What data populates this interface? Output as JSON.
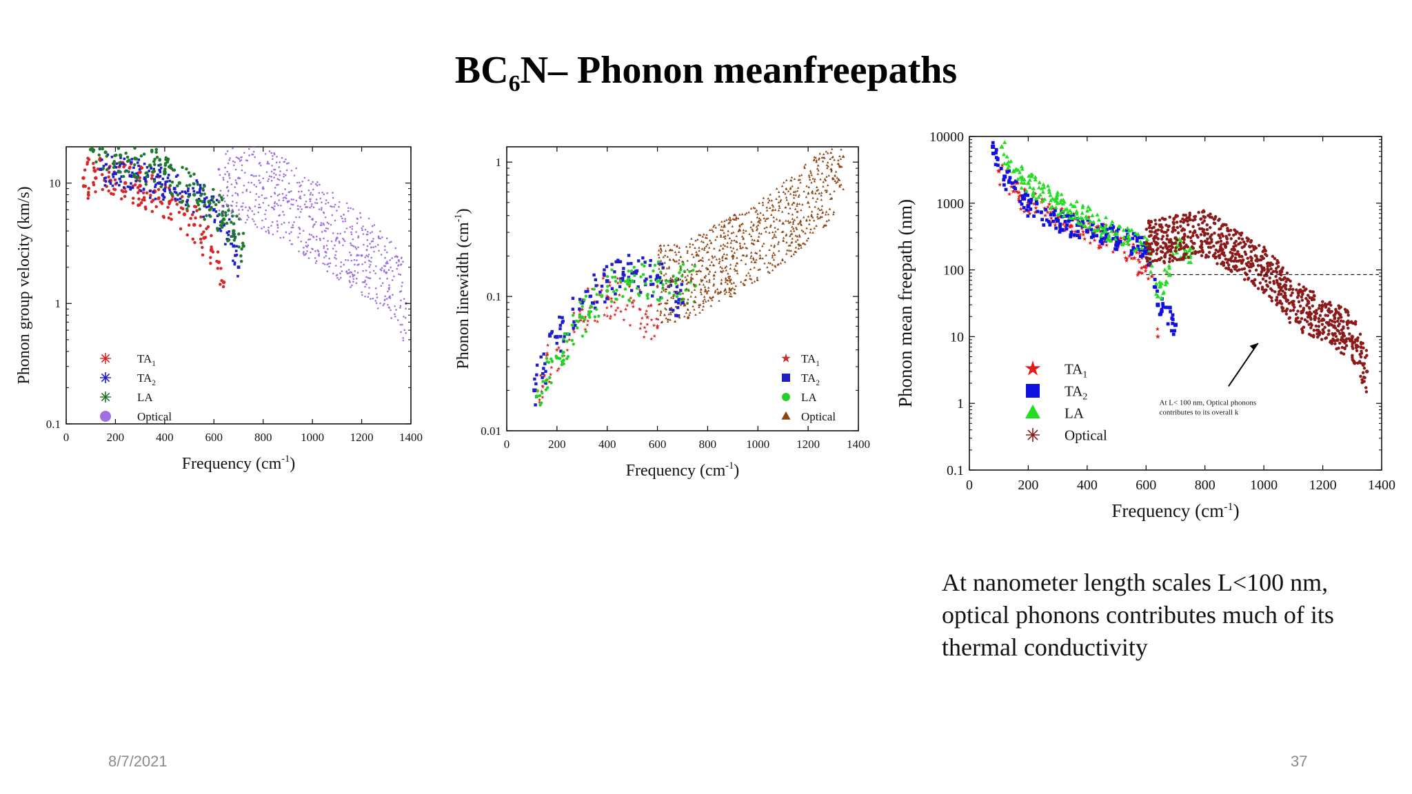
{
  "slide": {
    "title_main": "BC",
    "title_sub": "6",
    "title_rest": "N– Phonon meanfreepaths",
    "caption": "At nanometer length scales L<100 nm, optical phonons contributes much of its thermal conductivity",
    "date": "8/7/2021",
    "page_number": "37"
  },
  "chart_data": [
    {
      "type": "scatter",
      "xlabel": "Frequency (cm-1)",
      "ylabel": "Phonon group velocity (km/s)",
      "xlim": [
        0,
        1400
      ],
      "ylim": [
        0.1,
        20
      ],
      "yscale": "log",
      "xticks": [
        "0",
        "200",
        "400",
        "600",
        "800",
        "1000",
        "1200",
        "1400"
      ],
      "yticks": [
        "0.1",
        "1",
        "10"
      ],
      "legend": [
        {
          "label": "TA",
          "sub": "1",
          "color": "#d62728",
          "marker": "asterisk"
        },
        {
          "label": "TA",
          "sub": "2",
          "color": "#1f1fc8",
          "marker": "asterisk"
        },
        {
          "label": "LA",
          "sub": "",
          "color": "#1e7a2b",
          "marker": "asterisk"
        },
        {
          "label": "Optical",
          "sub": "",
          "color": "#a070e0",
          "marker": "dot"
        }
      ],
      "legend_position": "bottom-left",
      "series": [
        {
          "name": "TA1",
          "color": "#d62728",
          "x": [
            70,
            120,
            180,
            240,
            300,
            360,
            420,
            480,
            520,
            560,
            590,
            620,
            640
          ],
          "y": [
            11,
            11,
            10.5,
            10,
            9.5,
            8.5,
            7,
            5.5,
            4.5,
            3.5,
            2.8,
            2.2,
            1.5
          ]
        },
        {
          "name": "TA2",
          "color": "#1f1fc8",
          "x": [
            140,
            200,
            260,
            320,
            380,
            440,
            500,
            560,
            600,
            640,
            680,
            700
          ],
          "y": [
            13,
            12,
            11.5,
            11,
            10,
            9,
            8,
            7,
            6,
            4.5,
            3,
            2
          ]
        },
        {
          "name": "LA",
          "color": "#1e7a2b",
          "x": [
            100,
            160,
            220,
            280,
            340,
            400,
            460,
            520,
            580,
            640,
            680,
            720
          ],
          "y": [
            19,
            18,
            17,
            16,
            14,
            12,
            10,
            8,
            7,
            5,
            4,
            3
          ]
        },
        {
          "name": "Optical",
          "color": "#a070e0",
          "x": [
            620,
            700,
            800,
            900,
            1000,
            1100,
            1200,
            1300,
            1380
          ],
          "y": [
            13,
            11,
            9,
            7,
            5,
            3.5,
            2.5,
            1.8,
            1
          ]
        }
      ]
    },
    {
      "type": "scatter",
      "xlabel": "Frequency (cm-1)",
      "ylabel": "Phonon linewidth (cm-1)",
      "xlim": [
        0,
        1400
      ],
      "ylim": [
        0.01,
        1.3
      ],
      "yscale": "log",
      "xticks": [
        "0",
        "200",
        "400",
        "600",
        "800",
        "1000",
        "1200",
        "1400"
      ],
      "yticks": [
        "0.01",
        "0.1",
        "1"
      ],
      "legend": [
        {
          "label": "TA",
          "sub": "1",
          "color": "#d62728",
          "marker": "star"
        },
        {
          "label": "TA",
          "sub": "2",
          "color": "#1f1fc8",
          "marker": "square"
        },
        {
          "label": "LA",
          "sub": "",
          "color": "#27d027",
          "marker": "circle"
        },
        {
          "label": "Optical",
          "sub": "",
          "color": "#8b4513",
          "marker": "triangle"
        }
      ],
      "legend_position": "bottom-right",
      "series": [
        {
          "name": "TA1",
          "color": "#d62728",
          "x": [
            120,
            200,
            300,
            400,
            500,
            560,
            600
          ],
          "y": [
            0.02,
            0.04,
            0.08,
            0.1,
            0.09,
            0.07,
            0.06
          ]
        },
        {
          "name": "TA2",
          "color": "#1f1fc8",
          "x": [
            110,
            200,
            300,
            400,
            500,
            600,
            700
          ],
          "y": [
            0.02,
            0.05,
            0.09,
            0.13,
            0.15,
            0.14,
            0.09
          ]
        },
        {
          "name": "LA",
          "color": "#27d027",
          "x": [
            120,
            200,
            300,
            400,
            500,
            600,
            750
          ],
          "y": [
            0.018,
            0.035,
            0.07,
            0.11,
            0.13,
            0.13,
            0.12
          ]
        },
        {
          "name": "Optical",
          "color": "#8b4513",
          "x": [
            600,
            700,
            800,
            900,
            1000,
            1100,
            1200,
            1300,
            1340
          ],
          "y": [
            0.12,
            0.13,
            0.16,
            0.2,
            0.26,
            0.35,
            0.5,
            0.75,
            1.1
          ]
        }
      ]
    },
    {
      "type": "scatter",
      "xlabel": "Frequency (cm-1)",
      "ylabel": "Phonon mean freepath (nm)",
      "xlim": [
        0,
        1400
      ],
      "ylim": [
        0.1,
        10000
      ],
      "yscale": "log",
      "xticks": [
        "0",
        "200",
        "400",
        "600",
        "800",
        "1000",
        "1200",
        "1400"
      ],
      "yticks": [
        "0.1",
        "1",
        "10",
        "100",
        "1000",
        "10000"
      ],
      "reference_line_y": 85,
      "annotation": "At L< 100 nm, Optical phonons contributes to its overall k",
      "annotation_line1": "At L< 100 nm, Optical phonons",
      "annotation_line2": "contributes to its overall k",
      "legend": [
        {
          "label": "TA",
          "sub": "1",
          "color": "#e31a1c",
          "marker": "star"
        },
        {
          "label": "TA",
          "sub": "2",
          "color": "#1010e0",
          "marker": "square"
        },
        {
          "label": "LA",
          "sub": "",
          "color": "#22dd22",
          "marker": "triangle"
        },
        {
          "label": "Optical",
          "sub": "",
          "color": "#8b1a1a",
          "marker": "asterisk"
        }
      ],
      "legend_position": "bottom-left",
      "series": [
        {
          "name": "TA1",
          "color": "#e31a1c",
          "x": [
            100,
            150,
            200,
            300,
            400,
            500,
            560,
            620,
            640
          ],
          "y": [
            3000,
            1500,
            1000,
            600,
            400,
            250,
            150,
            80,
            10
          ]
        },
        {
          "name": "TA2",
          "color": "#1010e0",
          "x": [
            80,
            120,
            200,
            300,
            400,
            500,
            600,
            640,
            700
          ],
          "y": [
            7000,
            2500,
            900,
            550,
            380,
            300,
            220,
            30,
            15
          ]
        },
        {
          "name": "LA",
          "color": "#22dd22",
          "x": [
            110,
            150,
            200,
            300,
            400,
            500,
            600,
            640,
            700,
            760
          ],
          "y": [
            7000,
            3000,
            2000,
            1000,
            600,
            350,
            250,
            40,
            200,
            180
          ]
        },
        {
          "name": "Optical",
          "color": "#8b1a1a",
          "x": [
            600,
            700,
            800,
            900,
            1000,
            1050,
            1100,
            1200,
            1300,
            1350
          ],
          "y": [
            250,
            300,
            350,
            200,
            100,
            60,
            30,
            18,
            10,
            3
          ]
        }
      ]
    }
  ]
}
